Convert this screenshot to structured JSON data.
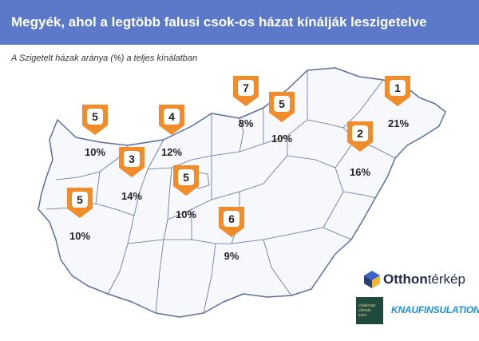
{
  "header": {
    "title": "Megyék, ahol a legtöbb falusi csok-os házat kínálják leszigetelve"
  },
  "subtitle": "A Szigetelt házak aránya (%) a teljes kínálatban",
  "markers": [
    {
      "rank": "1",
      "percent": "21%"
    },
    {
      "rank": "2",
      "percent": "16%"
    },
    {
      "rank": "3",
      "percent": "14%"
    },
    {
      "rank": "4",
      "percent": "12%"
    },
    {
      "rank": "5",
      "percent": "10%"
    },
    {
      "rank": "5",
      "percent": "10%"
    },
    {
      "rank": "5",
      "percent": "10%"
    },
    {
      "rank": "5",
      "percent": "10%"
    },
    {
      "rank": "6",
      "percent": "9%"
    },
    {
      "rank": "7",
      "percent": "8%"
    }
  ],
  "colors": {
    "header_bg": "#5b79c8",
    "marker_fill": "#f08c2a",
    "map_fill": "#f7f8fc",
    "map_border": "#5a6f99"
  },
  "logos": {
    "otthon_bold": "Otthon",
    "otthon_light": "térkép",
    "challenge_lines": [
      "challenge",
      "climate",
      "save"
    ],
    "knauf_text": "KNAUFINSULATION"
  }
}
